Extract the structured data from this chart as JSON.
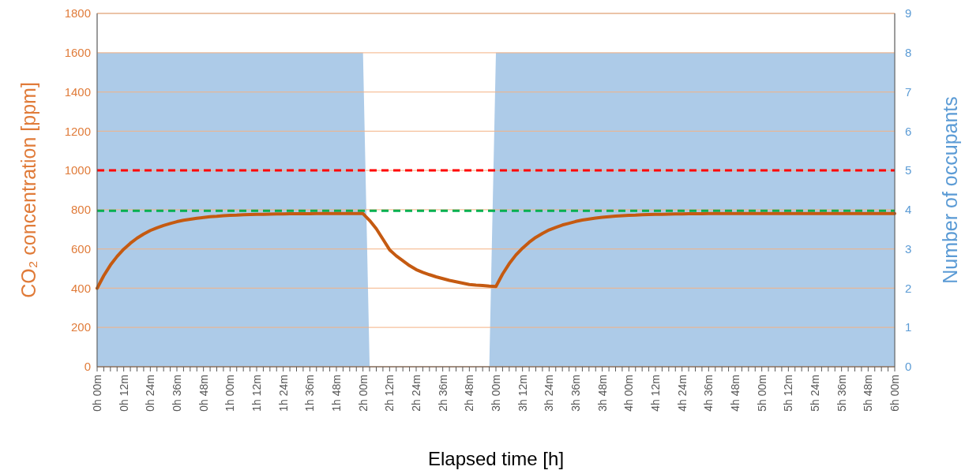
{
  "chart_data": {
    "type": "line",
    "xlabel": "Elapsed time [h]",
    "ylabel": "CO₂ concentration [ppm]",
    "y2label": "Number of occupants",
    "ylim": [
      0,
      1800
    ],
    "yticks": [
      0,
      200,
      400,
      600,
      800,
      1000,
      1200,
      1400,
      1600,
      1800
    ],
    "y2lim": [
      0,
      9
    ],
    "y2ticks": [
      0,
      1,
      2,
      3,
      4,
      5,
      6,
      7,
      8,
      9
    ],
    "categories": [
      "0h 00m",
      null,
      null,
      null,
      "0h 12m",
      null,
      null,
      null,
      "0h 24m",
      null,
      null,
      null,
      "0h 36m",
      null,
      null,
      null,
      "0h 48m",
      null,
      null,
      null,
      "1h 00m",
      null,
      null,
      null,
      "1h 12m",
      null,
      null,
      null,
      "1h 24m",
      null,
      null,
      null,
      "1h 36m",
      null,
      null,
      null,
      "1h 48m",
      null,
      null,
      null,
      "2h 00m",
      null,
      null,
      null,
      "2h 12m",
      null,
      null,
      null,
      "2h 24m",
      null,
      null,
      null,
      "2h 36m",
      null,
      null,
      null,
      "2h 48m",
      null,
      null,
      null,
      "3h 00m",
      null,
      null,
      null,
      "3h 12m",
      null,
      null,
      null,
      "3h 24m",
      null,
      null,
      null,
      "3h 36m",
      null,
      null,
      null,
      "3h 48m",
      null,
      null,
      null,
      "4h 00m",
      null,
      null,
      null,
      "4h 12m",
      null,
      null,
      null,
      "4h 24m",
      null,
      null,
      null,
      "4h 36m",
      null,
      null,
      null,
      "4h 48m",
      null,
      null,
      null,
      "5h 00m",
      null,
      null,
      null,
      "5h 12m",
      null,
      null,
      null,
      "5h 24m",
      null,
      null,
      null,
      "5h 36m",
      null,
      null,
      null,
      "5h 48m",
      null,
      null,
      null,
      "6h 00m"
    ],
    "grid": "y",
    "series": [
      {
        "type": "area",
        "axis": "y2",
        "color": "#adcbe8",
        "values": [
          8,
          8,
          8,
          8,
          8,
          8,
          8,
          8,
          8,
          8,
          8,
          8,
          8,
          8,
          8,
          8,
          8,
          8,
          8,
          8,
          8,
          8,
          8,
          8,
          8,
          8,
          8,
          8,
          8,
          8,
          8,
          8,
          8,
          8,
          8,
          8,
          8,
          8,
          8,
          8,
          8,
          0,
          0,
          0,
          0,
          0,
          0,
          0,
          0,
          0,
          0,
          0,
          0,
          0,
          0,
          0,
          0,
          0,
          0,
          0,
          8,
          8,
          8,
          8,
          8,
          8,
          8,
          8,
          8,
          8,
          8,
          8,
          8,
          8,
          8,
          8,
          8,
          8,
          8,
          8,
          8,
          8,
          8,
          8,
          8,
          8,
          8,
          8,
          8,
          8,
          8,
          8,
          8,
          8,
          8,
          8,
          8,
          8,
          8,
          8,
          8,
          8,
          8,
          8,
          8,
          8,
          8,
          8,
          8,
          8,
          8,
          8,
          8,
          8,
          8,
          8,
          8,
          8,
          8,
          8,
          8
        ]
      },
      {
        "color": "#c55a11",
        "values": [
          400,
          464,
          518,
          562,
          599,
          629,
          655,
          676,
          694,
          708,
          720,
          730,
          739,
          746,
          751,
          756,
          760,
          764,
          766,
          769,
          771,
          772,
          774,
          775,
          776,
          776,
          777,
          778,
          778,
          779,
          779,
          779,
          779,
          780,
          780,
          780,
          780,
          780,
          780,
          780,
          780,
          745,
          703,
          650,
          596,
          565,
          540,
          515,
          495,
          481,
          469,
          458,
          449,
          440,
          433,
          426,
          419,
          416,
          414,
          411,
          409,
          472,
          525,
          569,
          604,
          634,
          659,
          679,
          697,
          710,
          722,
          731,
          740,
          747,
          752,
          757,
          761,
          764,
          767,
          769,
          771,
          772,
          774,
          775,
          776,
          776,
          777,
          778,
          778,
          779,
          779,
          779,
          780,
          780,
          780,
          780,
          780,
          780,
          780,
          780,
          780,
          780,
          780,
          780,
          780,
          780,
          780,
          780,
          780,
          780,
          780,
          780,
          780,
          780,
          780,
          780,
          780,
          780,
          780,
          780,
          780
        ]
      }
    ],
    "ref_lines": [
      {
        "axis": "y",
        "value": 1000,
        "color": "#ff0000",
        "line_style": "dashed"
      },
      {
        "axis": "y",
        "value": 795,
        "color": "#00b050",
        "line_style": "dashed"
      }
    ]
  }
}
